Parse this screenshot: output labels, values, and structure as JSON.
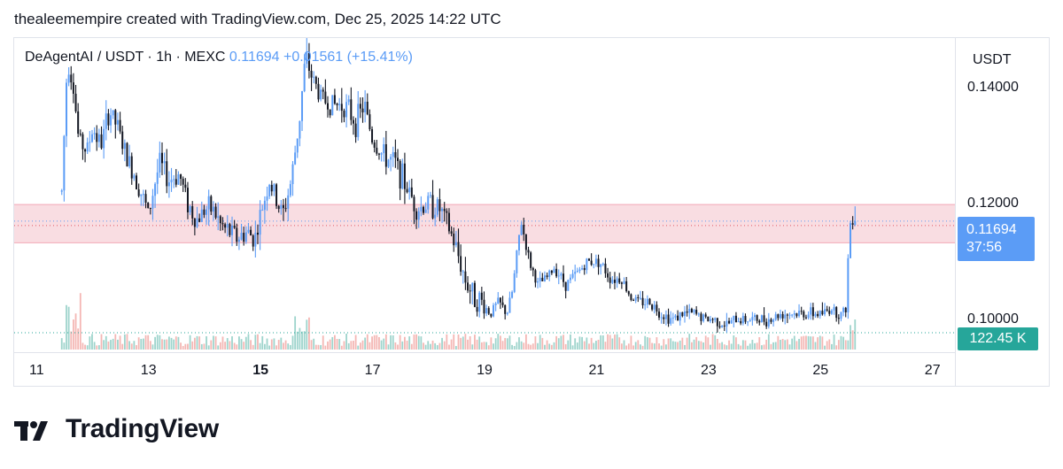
{
  "caption": "thealeemempire created with TradingView.com, Dec 25, 2025 14:22 UTC",
  "legend": {
    "symbol": "DeAgentAI / USDT · 1h · MEXC",
    "last": "0.11694",
    "change": "+0.01561",
    "change_pct": "(+15.41%)"
  },
  "currency": "USDT",
  "price_tag": {
    "price": "0.11694",
    "countdown": "37:56"
  },
  "volume_tag": "122.45 K",
  "logo_text": "TradingView",
  "colors": {
    "candle_up": "#5b9cf6",
    "candle_down": "#131722",
    "zone_fill": "#f8d7dd",
    "zone_border": "#f3a9b6",
    "volume_up": "#9ed4cc",
    "volume_down": "#f4b7b4",
    "price_tag": "#5b9cf6",
    "volume_tag": "#26a69a"
  },
  "chart_data": {
    "type": "candlestick",
    "timeframe": "1h",
    "y_ticks": [
      "0.14000",
      "0.12000",
      "0.10000"
    ],
    "y_tick_values": [
      0.14,
      0.12,
      0.1
    ],
    "ylim": [
      0.0945,
      0.1485
    ],
    "x_ticks": [
      {
        "label": "11",
        "day": 11,
        "bold": false
      },
      {
        "label": "13",
        "day": 13,
        "bold": false
      },
      {
        "label": "15",
        "day": 15,
        "bold": true
      },
      {
        "label": "17",
        "day": 17,
        "bold": false
      },
      {
        "label": "19",
        "day": 19,
        "bold": false
      },
      {
        "label": "21",
        "day": 21,
        "bold": false
      },
      {
        "label": "23",
        "day": 23,
        "bold": false
      },
      {
        "label": "25",
        "day": 25,
        "bold": false
      },
      {
        "label": "27",
        "day": 27,
        "bold": false
      }
    ],
    "xlim_days": [
      10.6,
      27.4
    ],
    "resistance_zone": [
      0.1132,
      0.1198
    ],
    "last_price": 0.11694,
    "path": [
      [
        11.45,
        0.122
      ],
      [
        11.55,
        0.145
      ],
      [
        11.65,
        0.141
      ],
      [
        11.75,
        0.131
      ],
      [
        11.9,
        0.129
      ],
      [
        12.0,
        0.133
      ],
      [
        12.15,
        0.13
      ],
      [
        12.3,
        0.136
      ],
      [
        12.45,
        0.133
      ],
      [
        12.6,
        0.128
      ],
      [
        12.75,
        0.125
      ],
      [
        12.9,
        0.121
      ],
      [
        13.0,
        0.118
      ],
      [
        13.1,
        0.123
      ],
      [
        13.2,
        0.127
      ],
      [
        13.35,
        0.124
      ],
      [
        13.55,
        0.125
      ],
      [
        13.7,
        0.12
      ],
      [
        13.85,
        0.117
      ],
      [
        14.0,
        0.119
      ],
      [
        14.15,
        0.119
      ],
      [
        14.3,
        0.116
      ],
      [
        14.45,
        0.115
      ],
      [
        14.6,
        0.114
      ],
      [
        14.75,
        0.115
      ],
      [
        14.9,
        0.114
      ],
      [
        15.0,
        0.118
      ],
      [
        15.15,
        0.124
      ],
      [
        15.3,
        0.12
      ],
      [
        15.4,
        0.118
      ],
      [
        15.55,
        0.124
      ],
      [
        15.7,
        0.135
      ],
      [
        15.8,
        0.145
      ],
      [
        15.95,
        0.141
      ],
      [
        16.1,
        0.138
      ],
      [
        16.3,
        0.137
      ],
      [
        16.5,
        0.137
      ],
      [
        16.7,
        0.134
      ],
      [
        16.85,
        0.137
      ],
      [
        17.0,
        0.131
      ],
      [
        17.2,
        0.128
      ],
      [
        17.4,
        0.127
      ],
      [
        17.6,
        0.123
      ],
      [
        17.8,
        0.119
      ],
      [
        18.0,
        0.12
      ],
      [
        18.2,
        0.119
      ],
      [
        18.35,
        0.116
      ],
      [
        18.5,
        0.112
      ],
      [
        18.65,
        0.107
      ],
      [
        18.8,
        0.104
      ],
      [
        18.95,
        0.103
      ],
      [
        19.1,
        0.101
      ],
      [
        19.25,
        0.103
      ],
      [
        19.4,
        0.101
      ],
      [
        19.5,
        0.105
      ],
      [
        19.65,
        0.117
      ],
      [
        19.8,
        0.11
      ],
      [
        19.95,
        0.106
      ],
      [
        20.1,
        0.107
      ],
      [
        20.25,
        0.109
      ],
      [
        20.45,
        0.106
      ],
      [
        20.65,
        0.108
      ],
      [
        20.85,
        0.11
      ],
      [
        21.05,
        0.11
      ],
      [
        21.25,
        0.107
      ],
      [
        21.45,
        0.107
      ],
      [
        21.6,
        0.104
      ],
      [
        21.75,
        0.103
      ],
      [
        21.95,
        0.103
      ],
      [
        22.15,
        0.101
      ],
      [
        22.35,
        0.1
      ],
      [
        22.55,
        0.101
      ],
      [
        22.75,
        0.101
      ],
      [
        22.95,
        0.1
      ],
      [
        23.1,
        0.1
      ],
      [
        23.3,
        0.099
      ],
      [
        23.5,
        0.1
      ],
      [
        23.7,
        0.1
      ],
      [
        23.9,
        0.1
      ],
      [
        24.1,
        0.1
      ],
      [
        24.3,
        0.101
      ],
      [
        24.5,
        0.101
      ],
      [
        24.7,
        0.101
      ],
      [
        24.9,
        0.101
      ],
      [
        25.05,
        0.101
      ],
      [
        25.2,
        0.102
      ],
      [
        25.3,
        0.101
      ],
      [
        25.4,
        0.101
      ],
      [
        25.45,
        0.102
      ],
      [
        25.5,
        0.112
      ],
      [
        25.55,
        0.119
      ],
      [
        25.6,
        0.116
      ],
      [
        25.63,
        0.117
      ]
    ]
  }
}
